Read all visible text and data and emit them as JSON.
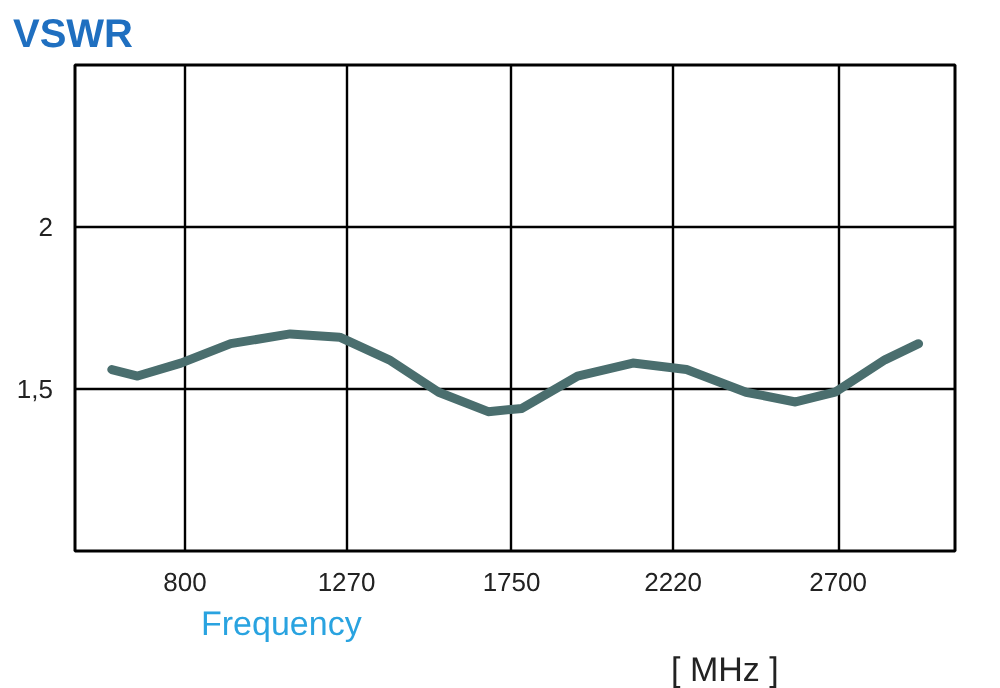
{
  "chart_data": {
    "type": "line",
    "title": "VSWR",
    "xlabel": "Frequency",
    "annotations": [
      "[ MHz ]"
    ],
    "x": [
      587,
      662,
      788,
      933,
      1106,
      1250,
      1394,
      1538,
      1682,
      1780,
      1942,
      2103,
      2259,
      2432,
      2576,
      2691,
      2836,
      2934
    ],
    "series": [
      {
        "color": "#4a6e6e",
        "values": [
          1.56,
          1.54,
          1.58,
          1.64,
          1.67,
          1.66,
          1.59,
          1.49,
          1.43,
          1.44,
          1.54,
          1.58,
          1.56,
          1.49,
          1.46,
          1.49,
          1.59,
          1.64
        ]
      }
    ],
    "xlim": [
      480,
      3040
    ],
    "xticks": [
      800,
      1270,
      1750,
      2220,
      2700
    ],
    "ylim": [
      1,
      2.5
    ],
    "yticks": [
      2,
      {
        "value": 1.5,
        "label": "1,5"
      }
    ],
    "grid": true,
    "marker": "none",
    "line_style": "solid"
  }
}
